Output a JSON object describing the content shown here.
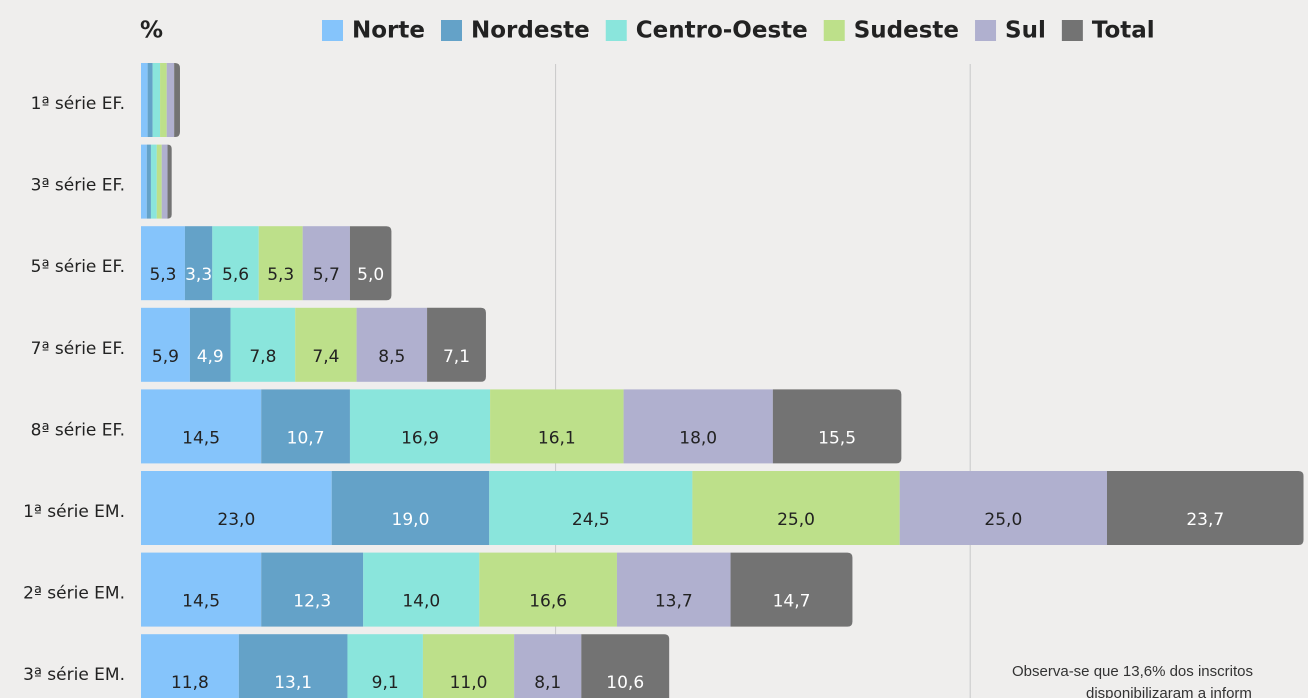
{
  "chart_data": {
    "type": "stacked-barh",
    "unit_label": "%",
    "categories": [
      "1ª série EF.",
      "3ª série EF.",
      "5ª série EF.",
      "7ª série EF.",
      "8ª série EF.",
      "1ª série EM.",
      "2ª série EM.",
      "3ª série EM."
    ],
    "series": [
      {
        "name": "Norte",
        "color": "#85c4fb",
        "text_color": "#222222",
        "values": [
          0.8,
          0.7,
          5.3,
          5.9,
          14.5,
          23.0,
          14.5,
          11.8
        ],
        "value_labels": [
          null,
          null,
          "5,3",
          "5,9",
          "14,5",
          "23,0",
          "14,5",
          "11,8"
        ]
      },
      {
        "name": "Nordeste",
        "color": "#64a2c8",
        "text_color": "#ffffff",
        "values": [
          0.6,
          0.5,
          3.3,
          4.9,
          10.7,
          19.0,
          12.3,
          13.1
        ],
        "value_labels": [
          null,
          null,
          "3,3",
          "4,9",
          "10,7",
          "19,0",
          "12,3",
          "13,1"
        ]
      },
      {
        "name": "Centro-Oeste",
        "color": "#8ae5dc",
        "text_color": "#222222",
        "values": [
          0.9,
          0.7,
          5.6,
          7.8,
          16.9,
          24.5,
          14.0,
          9.1
        ],
        "value_labels": [
          null,
          null,
          "5,6",
          "7,8",
          "16,9",
          "24,5",
          "14,0",
          "9,1"
        ]
      },
      {
        "name": "Sudeste",
        "color": "#bde08a",
        "text_color": "#222222",
        "values": [
          0.8,
          0.6,
          5.3,
          7.4,
          16.1,
          25.0,
          16.6,
          11.0
        ],
        "value_labels": [
          null,
          null,
          "5,3",
          "7,4",
          "16,1",
          "25,0",
          "16,6",
          "11,0"
        ]
      },
      {
        "name": "Sul",
        "color": "#b0b0cf",
        "text_color": "#222222",
        "values": [
          0.9,
          0.7,
          5.7,
          8.5,
          18.0,
          25.0,
          13.7,
          8.1
        ],
        "value_labels": [
          null,
          null,
          "5,7",
          "8,5",
          "18,0",
          "25,0",
          "13,7",
          "8,1"
        ]
      },
      {
        "name": "Total",
        "color": "#737373",
        "text_color": "#ffffff",
        "values": [
          0.7,
          0.5,
          5.0,
          7.1,
          15.5,
          23.7,
          14.7,
          10.6
        ],
        "value_labels": [
          null,
          null,
          "5,0",
          "7,1",
          "15,5",
          "23,7",
          "14,7",
          "10,6"
        ]
      }
    ],
    "xlim": [
      0,
      140.5
    ],
    "xticks": [
      50,
      100
    ],
    "grid": true,
    "annotation": [
      "Observa-se que 13,6% dos inscritos",
      "disponibilizaram a inform"
    ]
  }
}
